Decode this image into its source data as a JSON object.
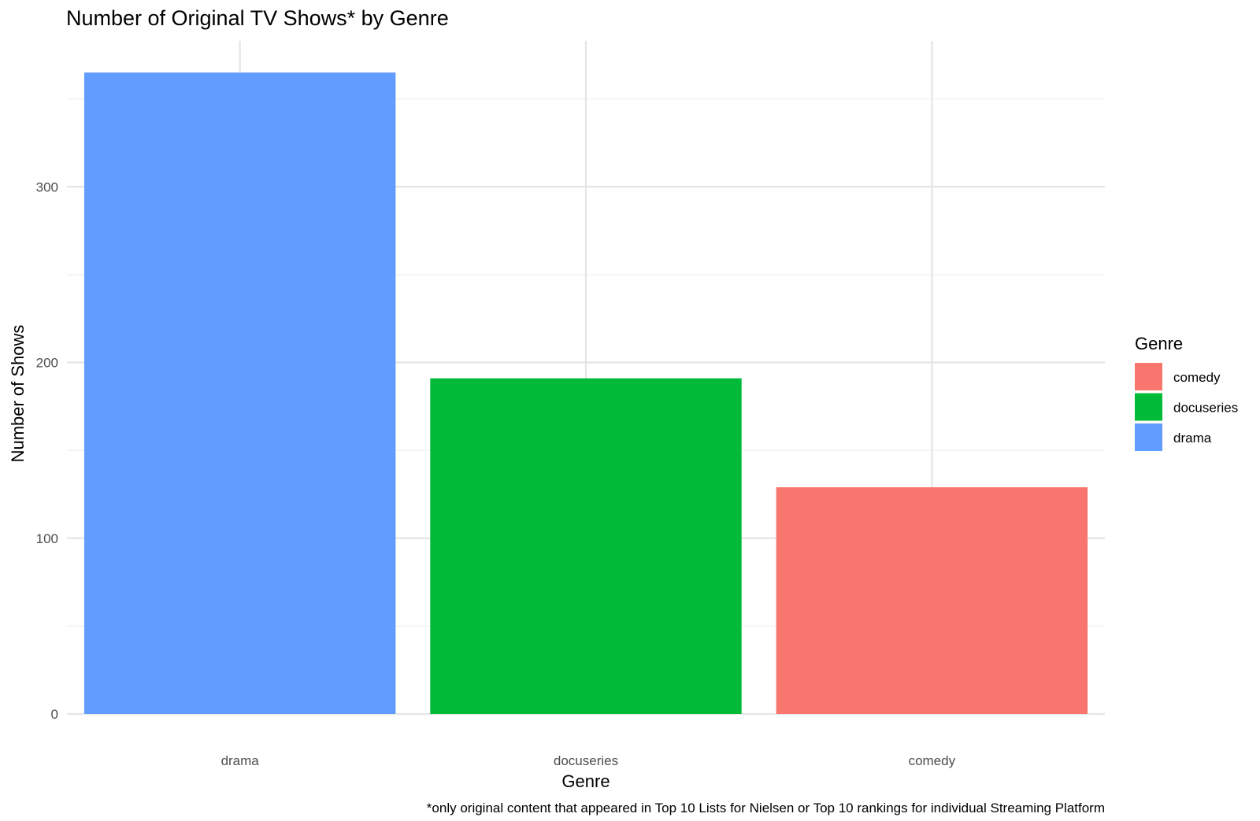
{
  "chart_data": {
    "type": "bar",
    "title": "Number of Original TV Shows* by Genre",
    "caption": "*only original content that appeared in Top 10 Lists for Nielsen or Top 10 rankings for individual Streaming Platform",
    "xlabel": "Genre",
    "ylabel": "Number of Shows",
    "categories": [
      "drama",
      "docuseries",
      "comedy"
    ],
    "values": [
      365,
      191,
      129
    ],
    "bar_colors": [
      "#619CFF",
      "#00BA38",
      "#F8766D"
    ],
    "ylim": [
      0,
      383
    ],
    "y_major_ticks": [
      0,
      100,
      200,
      300
    ],
    "y_minor_ticks": [
      50,
      150,
      250,
      350
    ],
    "grid": true,
    "legend": {
      "title": "Genre",
      "placement": "right",
      "entries": [
        {
          "label": "comedy",
          "color": "#F8766D"
        },
        {
          "label": "docuseries",
          "color": "#00BA38"
        },
        {
          "label": "drama",
          "color": "#619CFF"
        }
      ]
    }
  }
}
